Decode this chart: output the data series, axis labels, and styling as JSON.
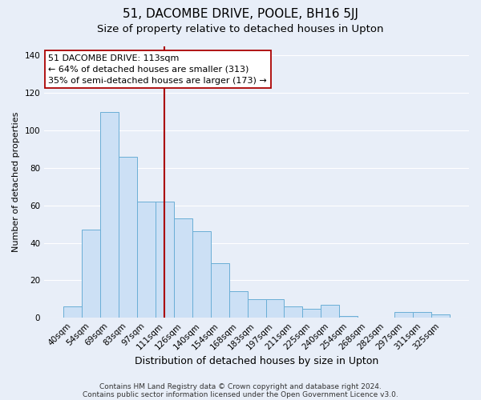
{
  "title": "51, DACOMBE DRIVE, POOLE, BH16 5JJ",
  "subtitle": "Size of property relative to detached houses in Upton",
  "xlabel": "Distribution of detached houses by size in Upton",
  "ylabel": "Number of detached properties",
  "bar_labels": [
    "40sqm",
    "54sqm",
    "69sqm",
    "83sqm",
    "97sqm",
    "111sqm",
    "126sqm",
    "140sqm",
    "154sqm",
    "168sqm",
    "183sqm",
    "197sqm",
    "211sqm",
    "225sqm",
    "240sqm",
    "254sqm",
    "268sqm",
    "282sqm",
    "297sqm",
    "311sqm",
    "325sqm"
  ],
  "bar_values": [
    6,
    47,
    110,
    86,
    62,
    62,
    53,
    46,
    29,
    14,
    10,
    10,
    6,
    5,
    7,
    1,
    0,
    0,
    3,
    3,
    2
  ],
  "bar_color": "#cce0f5",
  "bar_edge_color": "#6aaed6",
  "vline_x_idx": 5,
  "vline_color": "#aa0000",
  "annotation_title": "51 DACOMBE DRIVE: 113sqm",
  "annotation_line1": "← 64% of detached houses are smaller (313)",
  "annotation_line2": "35% of semi-detached houses are larger (173) →",
  "annotation_box_facecolor": "#ffffff",
  "annotation_box_edgecolor": "#aa0000",
  "ylim": [
    0,
    145
  ],
  "footnote1": "Contains HM Land Registry data © Crown copyright and database right 2024.",
  "footnote2": "Contains public sector information licensed under the Open Government Licence v3.0.",
  "bg_color": "#e8eef8",
  "plot_bg_color": "#e8eef8",
  "grid_color": "#ffffff",
  "title_fontsize": 11,
  "subtitle_fontsize": 9.5,
  "xlabel_fontsize": 9,
  "ylabel_fontsize": 8,
  "tick_fontsize": 7.5,
  "annotation_fontsize": 8,
  "footnote_fontsize": 6.5
}
